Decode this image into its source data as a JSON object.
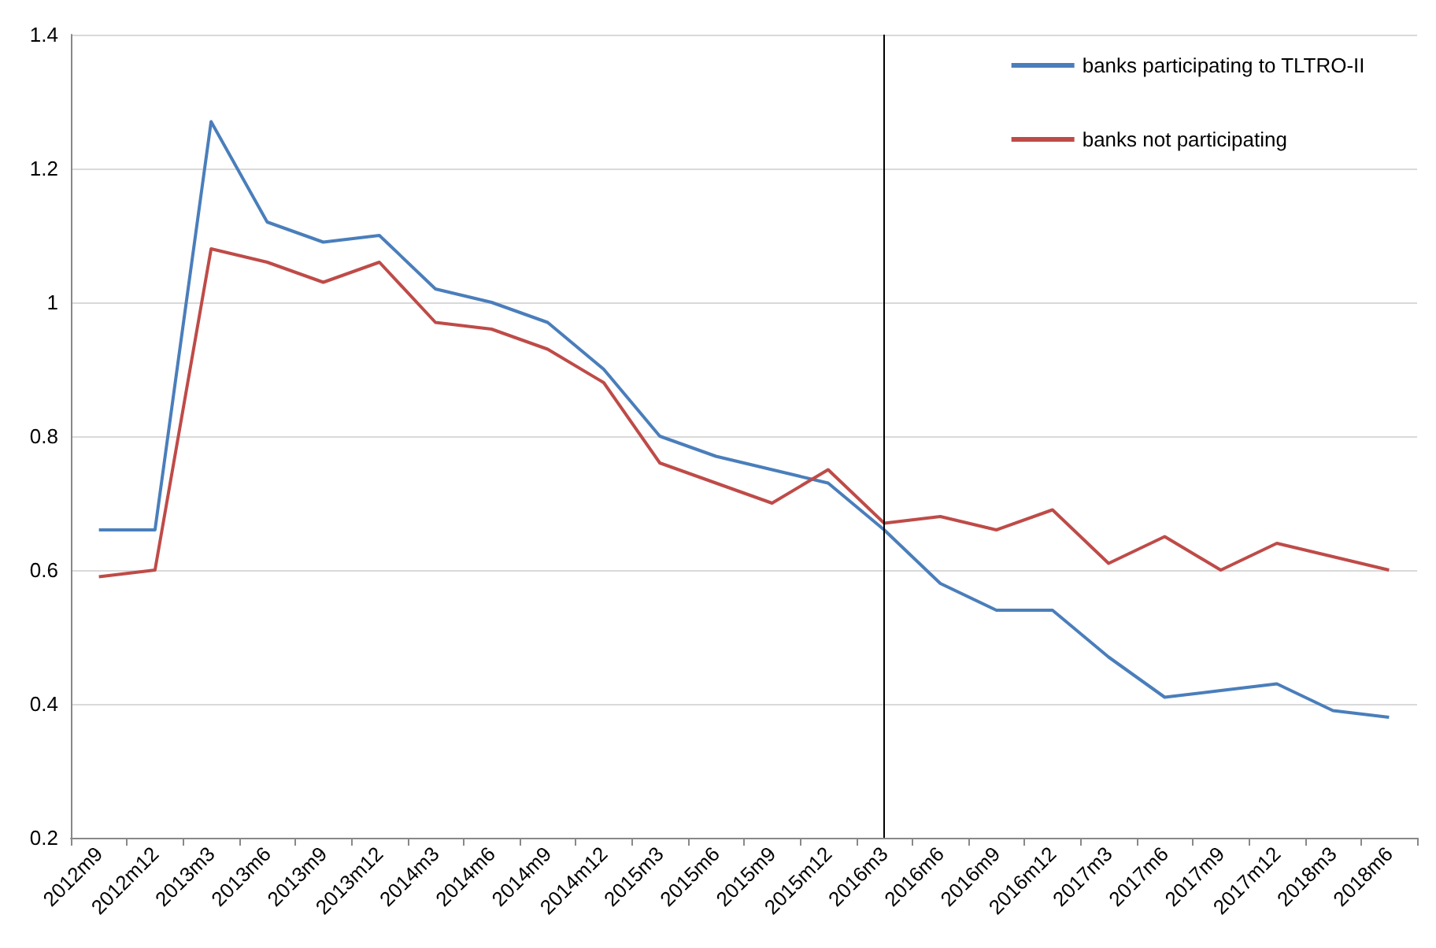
{
  "chart_data": {
    "type": "line",
    "categories": [
      "2012m9",
      "2012m12",
      "2013m3",
      "2013m6",
      "2013m9",
      "2013m12",
      "2014m3",
      "2014m6",
      "2014m9",
      "2014m12",
      "2015m3",
      "2015m6",
      "2015m9",
      "2015m12",
      "2016m3",
      "2016m6",
      "2016m9",
      "2016m12",
      "2017m3",
      "2017m6",
      "2017m9",
      "2017m12",
      "2018m3",
      "2018m6"
    ],
    "series": [
      {
        "name": "banks participating to TLTRO-II",
        "color": "#4a7ebb",
        "values": [
          0.66,
          0.66,
          1.27,
          1.12,
          1.09,
          1.1,
          1.02,
          1.0,
          0.97,
          0.9,
          0.8,
          0.77,
          0.75,
          0.73,
          0.66,
          0.58,
          0.54,
          0.54,
          0.47,
          0.41,
          0.42,
          0.43,
          0.39,
          0.38
        ]
      },
      {
        "name": "banks not participating",
        "color": "#be4b48",
        "values": [
          0.59,
          0.6,
          1.08,
          1.06,
          1.03,
          1.06,
          0.97,
          0.96,
          0.93,
          0.88,
          0.76,
          0.73,
          0.7,
          0.75,
          0.67,
          0.68,
          0.66,
          0.69,
          0.61,
          0.65,
          0.6,
          0.64,
          0.62,
          0.6
        ]
      }
    ],
    "ylim": [
      0.2,
      1.4
    ],
    "yticks": [
      0.2,
      0.4,
      0.6,
      0.8,
      1,
      1.2,
      1.4
    ],
    "ref_lines": [
      {
        "axis": "x",
        "value": "2016m3",
        "color": "#000000"
      }
    ],
    "grid": "y",
    "legend": "top right",
    "marker": "none",
    "line_style": "solid"
  }
}
